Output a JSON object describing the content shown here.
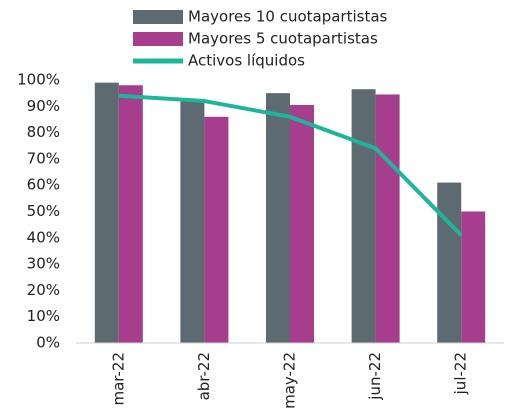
{
  "chart_data": {
    "type": "bar_line",
    "categories": [
      "mar-22",
      "abr-22",
      "may-22",
      "jun-22",
      "jul-22"
    ],
    "series": [
      {
        "name": "Mayores 10 cuotapartistas",
        "type": "bar",
        "color": "#5e6a72",
        "values": [
          99,
          92,
          95,
          96.5,
          61
        ]
      },
      {
        "name": "Mayores 5 cuotapartistas",
        "type": "bar",
        "color": "#a63d8d",
        "values": [
          98,
          86,
          90.5,
          94.5,
          50
        ]
      },
      {
        "name": "Activos líquidos",
        "type": "line",
        "color": "#1db69b",
        "values": [
          94,
          92,
          86,
          74,
          41
        ]
      }
    ],
    "ylim": [
      0,
      100
    ],
    "yticks": [
      {
        "value": 0,
        "label": "0%"
      },
      {
        "value": 10,
        "label": "10%"
      },
      {
        "value": 20,
        "label": "20%"
      },
      {
        "value": 30,
        "label": "30%"
      },
      {
        "value": 40,
        "label": "40%"
      },
      {
        "value": 50,
        "label": "50%"
      },
      {
        "value": 60,
        "label": "60%"
      },
      {
        "value": 70,
        "label": "70%"
      },
      {
        "value": 80,
        "label": "80%"
      },
      {
        "value": 90,
        "label": "90%"
      },
      {
        "value": 100,
        "label": "100%"
      }
    ],
    "grid": false,
    "legend": "top"
  }
}
